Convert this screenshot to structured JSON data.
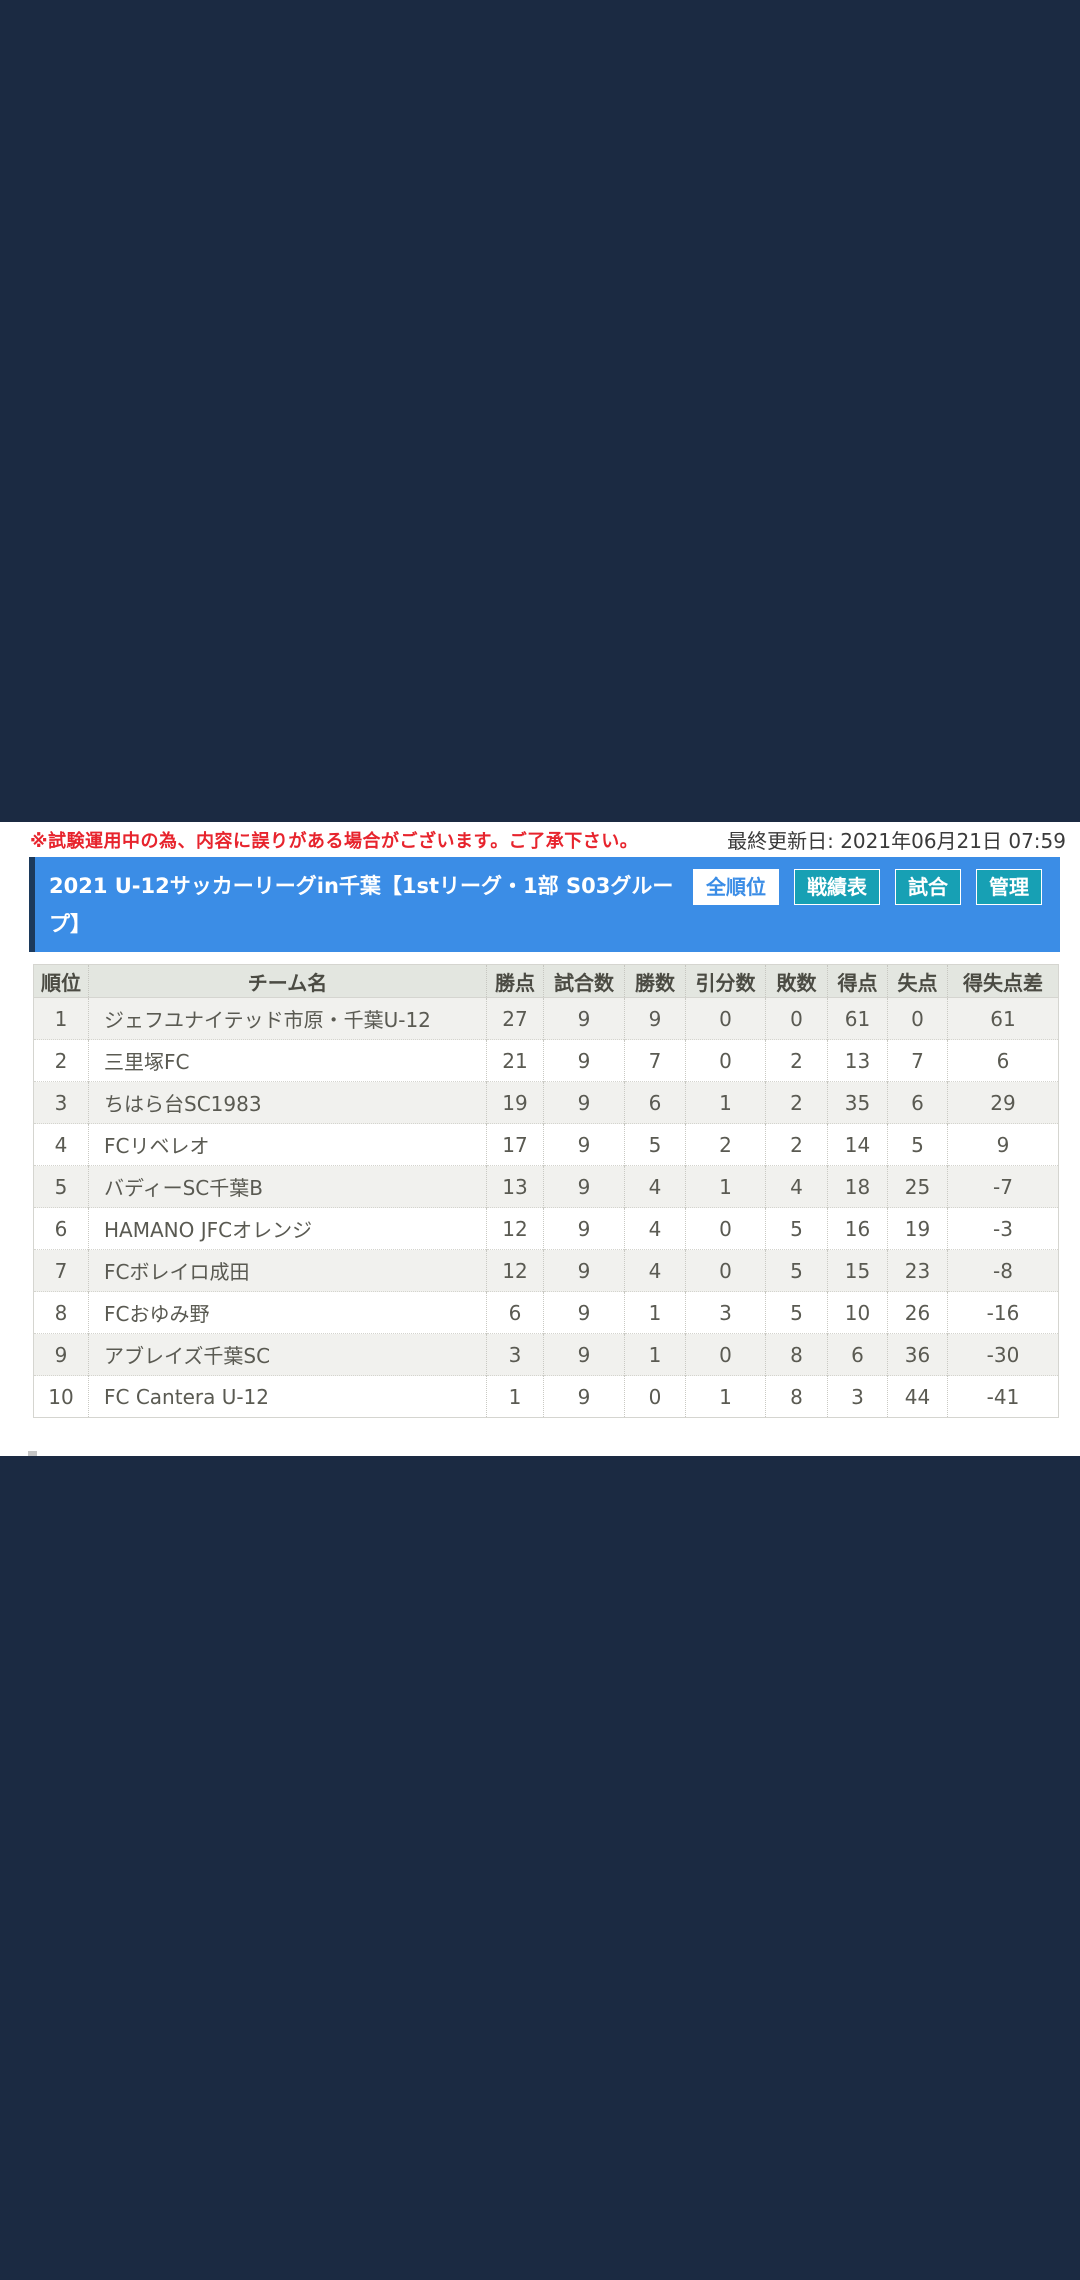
{
  "page": {
    "warning": "※試験運用中の為、内容に誤りがある場合がございます。ご了承下さい。",
    "last_updated": "最終更新日: 2021年06月21日 07:59"
  },
  "league_header": {
    "title": "2021 U-12サッカーリーグin千葉【1stリーグ・1部 S03グループ】",
    "tabs": [
      {
        "label": "全順位",
        "active": true
      },
      {
        "label": "戦績表",
        "active": false
      },
      {
        "label": "試合",
        "active": false
      },
      {
        "label": "管理",
        "active": false
      }
    ]
  },
  "standings": {
    "columns": [
      "順位",
      "チーム名",
      "勝点",
      "試合数",
      "勝数",
      "引分数",
      "敗数",
      "得点",
      "失点",
      "得失点差"
    ],
    "rows": [
      [
        "1",
        "ジェフユナイテッド市原・千葉U-12",
        "27",
        "9",
        "9",
        "0",
        "0",
        "61",
        "0",
        "61"
      ],
      [
        "2",
        "三里塚FC",
        "21",
        "9",
        "7",
        "0",
        "2",
        "13",
        "7",
        "6"
      ],
      [
        "3",
        "ちはら台SC1983",
        "19",
        "9",
        "6",
        "1",
        "2",
        "35",
        "6",
        "29"
      ],
      [
        "4",
        "FCリベレオ",
        "17",
        "9",
        "5",
        "2",
        "2",
        "14",
        "5",
        "9"
      ],
      [
        "5",
        "バディーSC千葉B",
        "13",
        "9",
        "4",
        "1",
        "4",
        "18",
        "25",
        "-7"
      ],
      [
        "6",
        "HAMANO JFCオレンジ",
        "12",
        "9",
        "4",
        "0",
        "5",
        "16",
        "19",
        "-3"
      ],
      [
        "7",
        "FCボレイロ成田",
        "12",
        "9",
        "4",
        "0",
        "5",
        "15",
        "23",
        "-8"
      ],
      [
        "8",
        "FCおゆみ野",
        "6",
        "9",
        "1",
        "3",
        "5",
        "10",
        "26",
        "-16"
      ],
      [
        "9",
        "アブレイズ千葉SC",
        "3",
        "9",
        "1",
        "0",
        "8",
        "6",
        "36",
        "-30"
      ],
      [
        "10",
        "FC Cantera U-12",
        "1",
        "9",
        "0",
        "1",
        "8",
        "3",
        "44",
        "-41"
      ]
    ]
  },
  "colors": {
    "page_background": "#1b2a42",
    "accent_blue": "#3b8de6",
    "accent_bar_edge": "#1c3a5c",
    "tab_teal": "#17a0b4",
    "warning_red": "#e7242d",
    "header_cell": "#e3e6e0",
    "striped_row": "#f1f1ee"
  }
}
